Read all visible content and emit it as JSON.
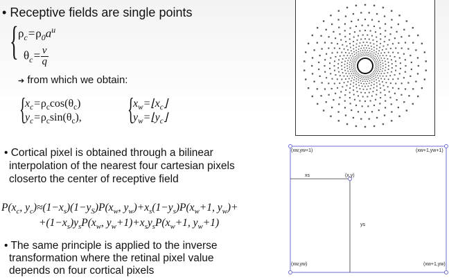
{
  "bullet1": "Receptive fields are single points",
  "eq1a": "ρc=ρ0 a^u",
  "eq1b": "θc=v/q",
  "sub_bullet": "from which we obtain:",
  "eq2": {
    "xc": "xc=ρc cos(θc)",
    "yc": "yc=ρc sin(θc)",
    "xw": "xw=⌊xc⌋",
    "yw": "yw=⌊yc⌋"
  },
  "bullet2_lines": [
    "Cortical pixel is obtained  through a bilinear",
    "interpolation of the nearest four cartesian pixels",
    "closerto the center of  receptive field"
  ],
  "bilinear_eq": {
    "line1": "P(xc, yc)≈(1−xs)(1−ys)P(xw, yw)+xs(1−ys)P(xw+1, yw)+",
    "line2": "+(1−xs)ysP(xw, yw+1)+xsysP(xw+1, yw+1)"
  },
  "bullet3_lines": [
    "The same principle is applied to the inverse",
    "transformation where the retinal pixel value",
    "depends on four cortical pixels"
  ],
  "grid_diagram": {
    "top_left": "(xw,yw+1)",
    "top_right": "(xw+1,yw+1)",
    "bottom_left": "(xw,yw)",
    "bottom_right": "(xw+1,yw)",
    "point": "(x,y)",
    "xs": "xs",
    "ys": "ys"
  },
  "retina_figure": {
    "rings": 14,
    "spokes": 42,
    "dot_color": "#555555"
  }
}
